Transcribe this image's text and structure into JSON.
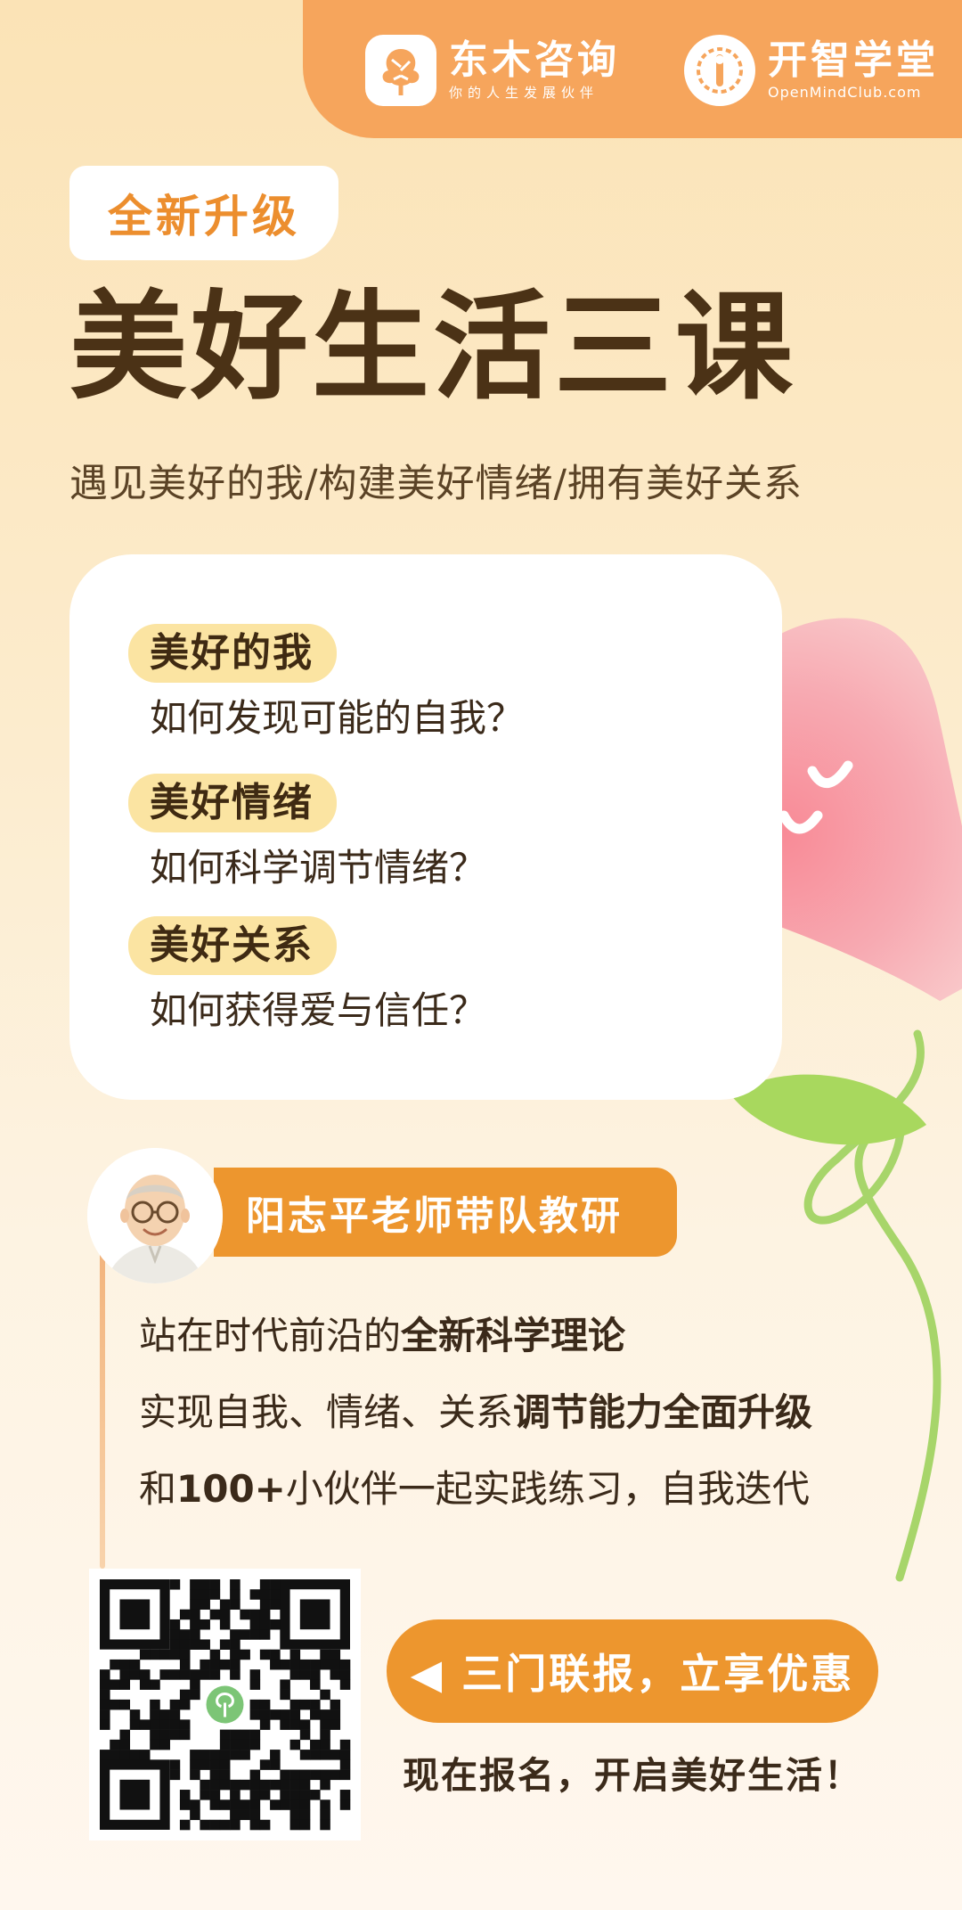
{
  "header": {
    "brand1": {
      "name": "东木咨询",
      "tagline": "你的人生发展伙伴",
      "icon": "tree-icon"
    },
    "brand2": {
      "name": "开智学堂",
      "tagline": "OpenMindClub.com",
      "icon": "mind-icon"
    }
  },
  "badge": "全新升级",
  "title": "美好生活三课",
  "subtitle": "遇见美好的我/构建美好情绪/拥有美好关系",
  "topics": [
    {
      "label": "美好的我",
      "question": "如何发现可能的自我？"
    },
    {
      "label": "美好情绪",
      "question": "如何科学调节情绪？"
    },
    {
      "label": "美好关系",
      "question": "如何获得爱与信任？"
    }
  ],
  "teacher": {
    "banner": "阳志平老师带队教研",
    "avatar_icon": "teacher-avatar-icon"
  },
  "features": [
    {
      "prefix": "站在时代前沿的",
      "bold": "全新科学理论",
      "suffix": ""
    },
    {
      "prefix": "实现自我、情绪、关系",
      "bold": "调节能力全面升级",
      "suffix": ""
    },
    {
      "prefix": "和",
      "bold": "100+",
      "suffix": "小伙伴一起实践练习，自我迭代"
    }
  ],
  "cta": {
    "button": "◀ 三门联报，立享优惠",
    "note": "现在报名，开启美好生活！"
  },
  "colors": {
    "accent": "#ed962e",
    "brandBar": "#f6a55c",
    "title": "#4b3216",
    "heart": "#f6a3a8",
    "leaf": "#9ed25a"
  }
}
